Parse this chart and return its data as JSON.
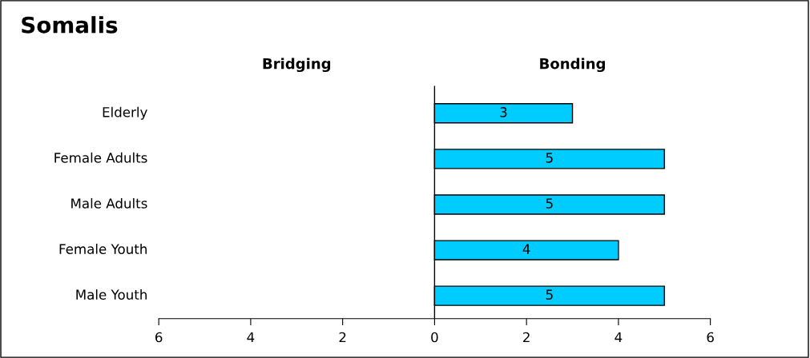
{
  "chart_data": {
    "type": "bar",
    "orientation": "horizontal",
    "title": "Somalis",
    "annotations": [
      "Bridging",
      "Bonding"
    ],
    "categories": [
      "Elderly",
      "Female Adults",
      "Male Adults",
      "Female Youth",
      "Male Youth"
    ],
    "series": [
      {
        "color": "#00ccff",
        "values": [
          3,
          5,
          5,
          4,
          5
        ]
      }
    ],
    "xlim": [
      -6,
      6
    ],
    "xticks": [
      {
        "value": -6,
        "label": "6"
      },
      {
        "value": -4,
        "label": "4"
      },
      {
        "value": -2,
        "label": "2"
      },
      0,
      2,
      4,
      6
    ],
    "ref_lines": [
      {
        "axis": "x",
        "value": 0,
        "color": "#000000"
      }
    ],
    "data_labels": true,
    "grid": false,
    "legend": false
  }
}
